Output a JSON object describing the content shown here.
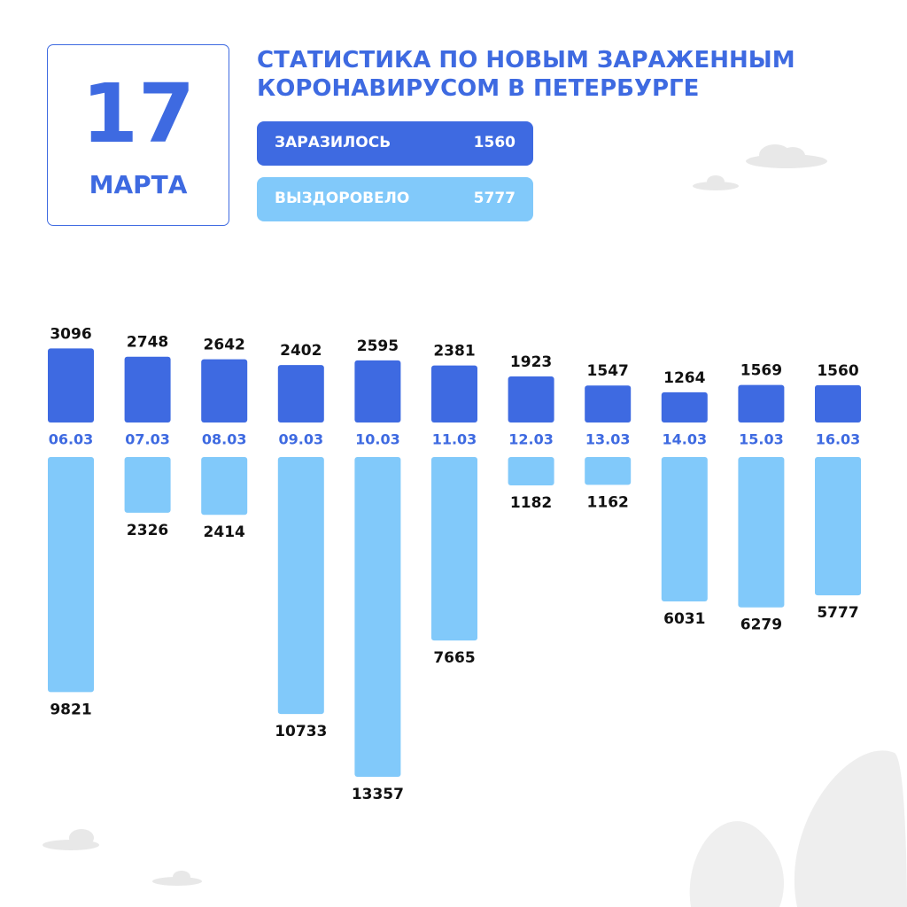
{
  "date": {
    "day": "17",
    "month": "МАРТА"
  },
  "chart_data": {
    "type": "diverging-bar",
    "title": "СТАТИСТИКА ПО НОВЫМ ЗАРАЖЕННЫМ КОРОНАВИРУСОМ В ПЕТЕРБУРГЕ",
    "categories": [
      "06.03",
      "07.03",
      "08.03",
      "09.03",
      "10.03",
      "11.03",
      "12.03",
      "13.03",
      "14.03",
      "15.03",
      "16.03"
    ],
    "series": [
      {
        "name": "ЗАРАЗИЛОСЬ",
        "color": "#3e6ae1",
        "values": [
          3096,
          2748,
          2642,
          2402,
          2595,
          2381,
          1923,
          1547,
          1264,
          1569,
          1560
        ]
      },
      {
        "name": "ВЫЗДОРОВЕЛО",
        "color": "#81c9fa",
        "values": [
          9821,
          2326,
          2414,
          10733,
          13357,
          7665,
          1182,
          1162,
          6031,
          6279,
          5777
        ]
      }
    ]
  }
}
